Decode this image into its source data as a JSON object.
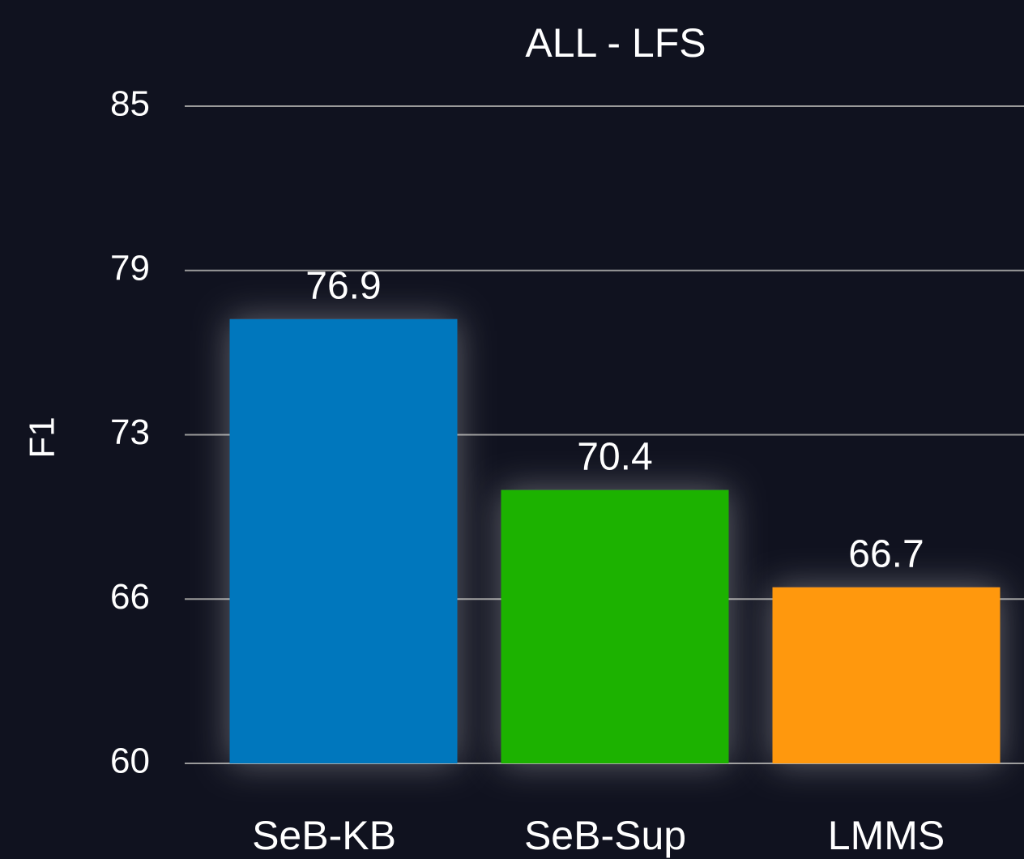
{
  "chart_data": {
    "type": "bar",
    "title": "ALL - LFS",
    "y_label": "F1",
    "categories": [
      "SeB-KB",
      "SeB-Sup",
      "LMMS"
    ],
    "values": [
      76.9,
      70.4,
      66.7
    ],
    "colors": [
      "#0077bd",
      "#1fb200",
      "#ff980c"
    ],
    "ylim": [
      60,
      85
    ],
    "yticks": [
      60,
      {
        "value": 66.25,
        "label": "66"
      },
      {
        "value": 72.5,
        "label": "73"
      },
      {
        "value": 78.75,
        "label": "79"
      },
      85
    ],
    "grid": true
  }
}
